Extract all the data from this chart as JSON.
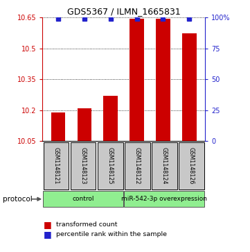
{
  "title": "GDS5367 / ILMN_1665831",
  "samples": [
    "GSM1148121",
    "GSM1148123",
    "GSM1148125",
    "GSM1148122",
    "GSM1148124",
    "GSM1148126"
  ],
  "red_values": [
    10.19,
    10.21,
    10.27,
    10.645,
    10.645,
    10.575
  ],
  "blue_values": [
    99,
    99,
    99,
    99,
    99,
    99
  ],
  "ylim_left": [
    10.05,
    10.65
  ],
  "ylim_right": [
    0,
    100
  ],
  "yticks_left": [
    10.05,
    10.2,
    10.35,
    10.5,
    10.65
  ],
  "yticks_right": [
    0,
    25,
    50,
    75,
    100
  ],
  "bar_color": "#CC0000",
  "marker_color": "#2222CC",
  "bar_width": 0.55,
  "left_color": "#CC0000",
  "right_color": "#2222CC",
  "xlabel_area_color": "#C8C8C8",
  "group_area_color": "#90EE90",
  "legend_red_label": "transformed count",
  "legend_blue_label": "percentile rank within the sample",
  "protocol_label": "protocol",
  "figsize": [
    3.61,
    3.63
  ],
  "dpi": 100
}
